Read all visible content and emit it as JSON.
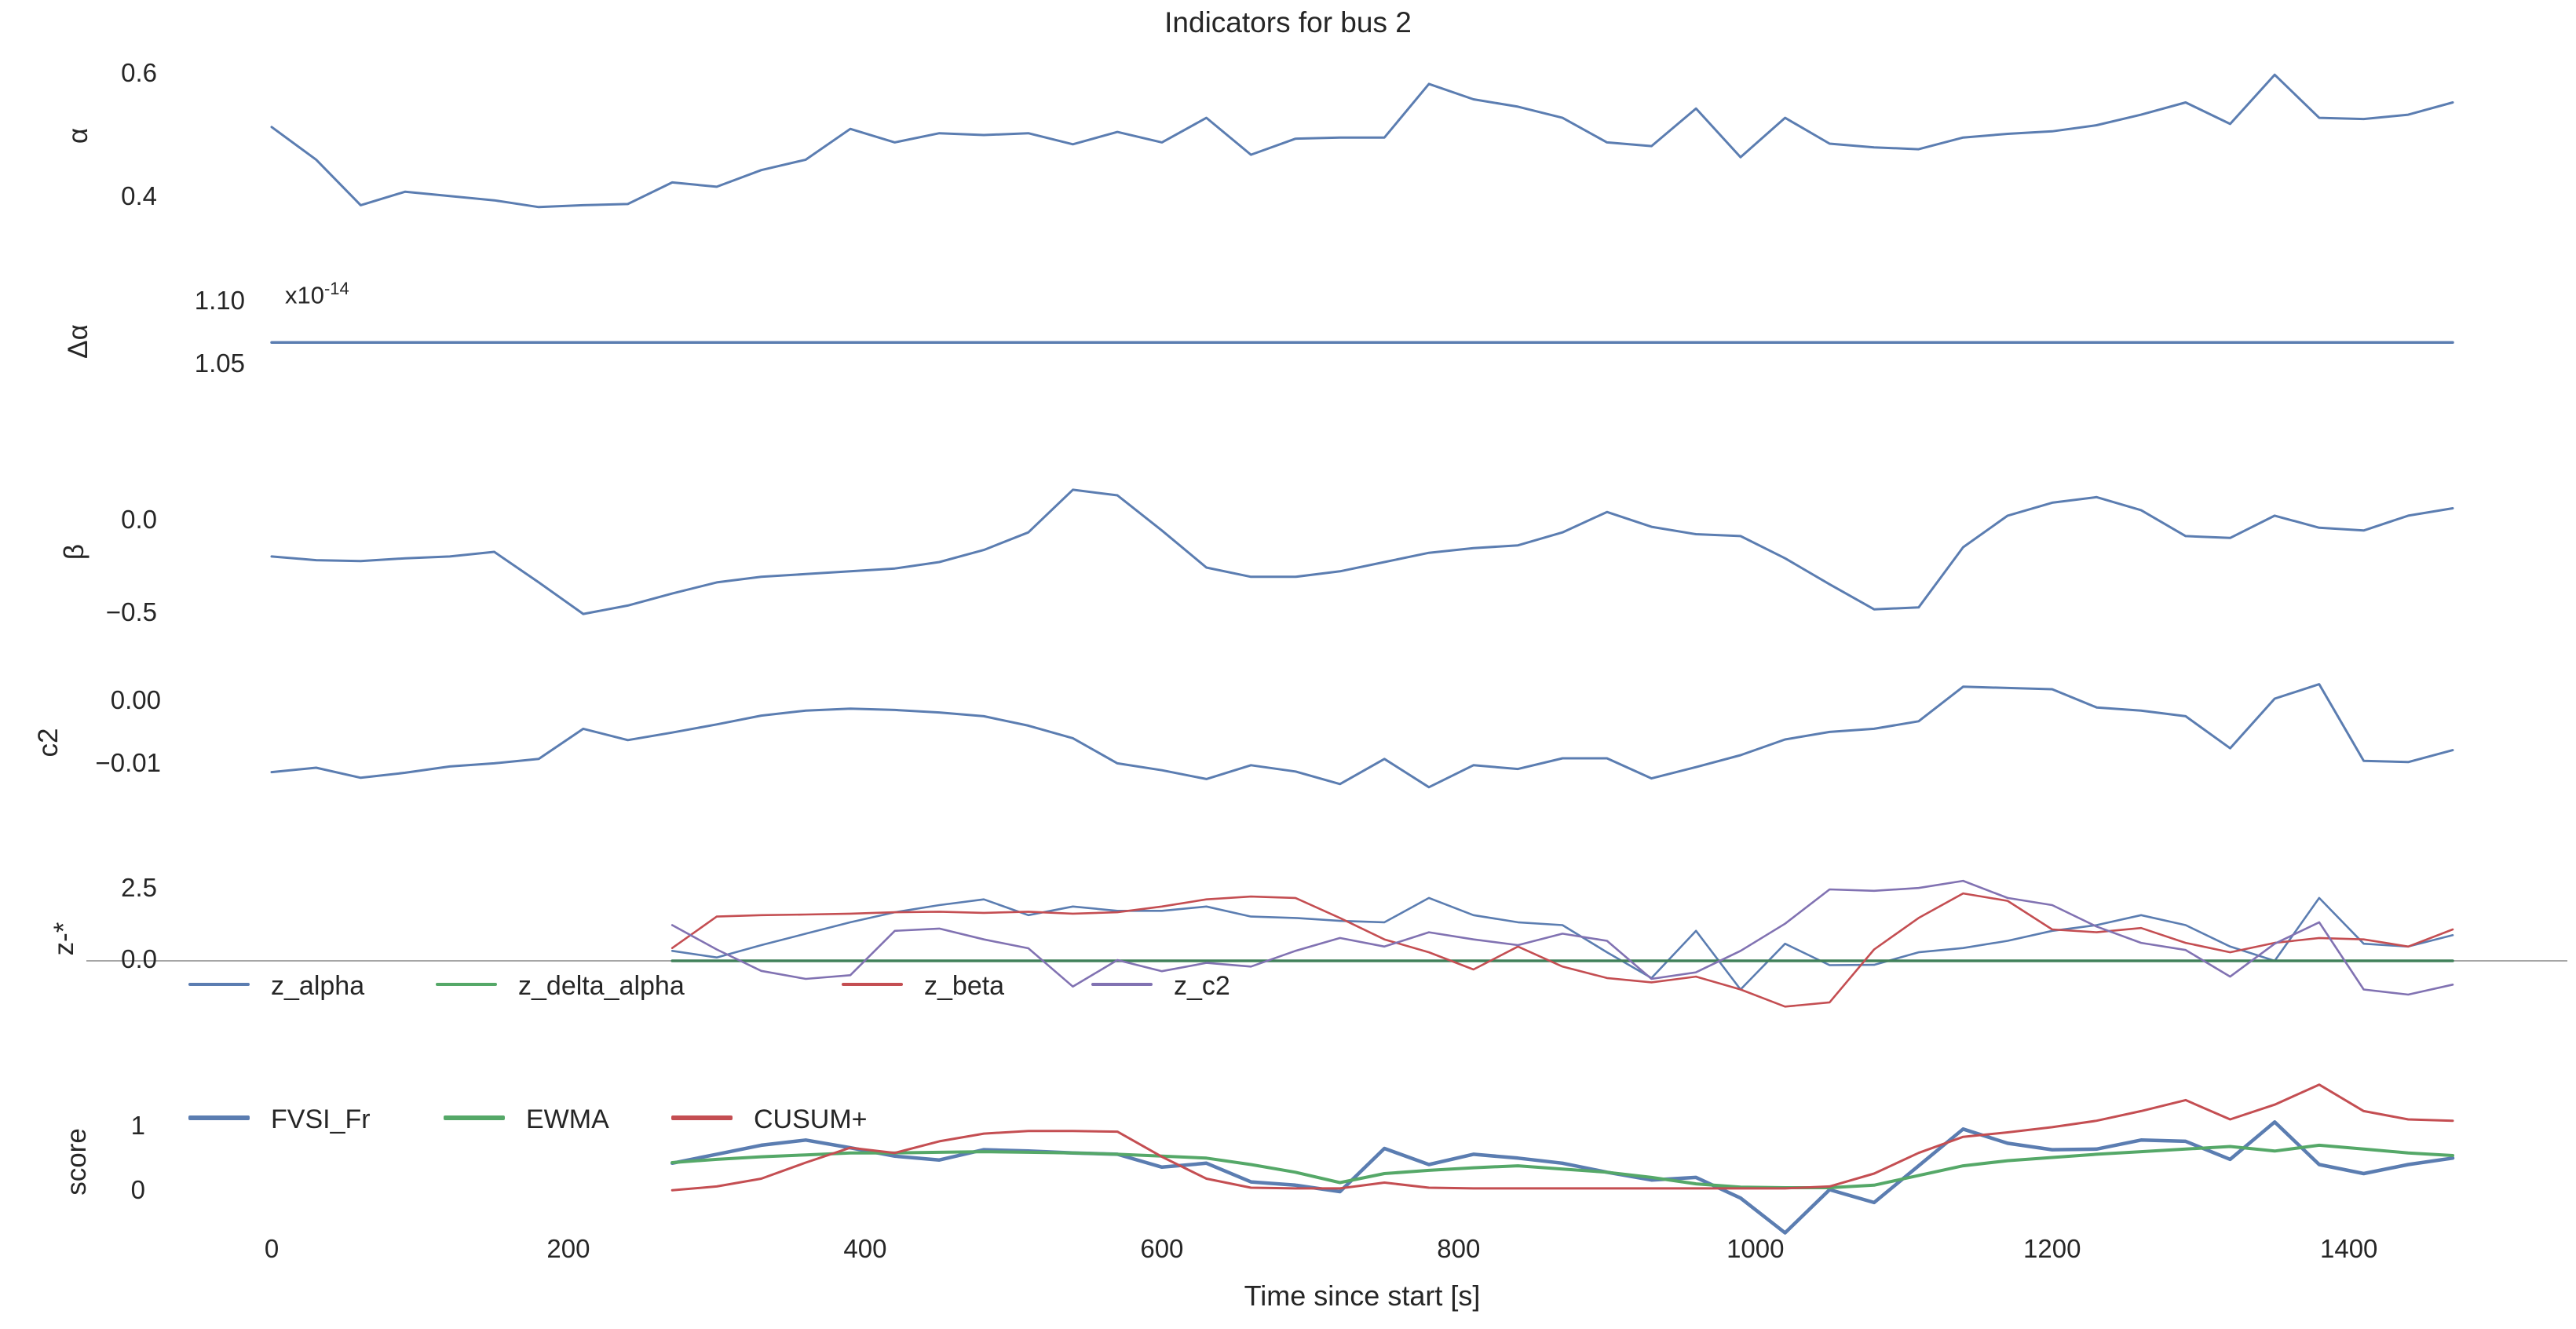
{
  "title": "Indicators for bus 2",
  "xlabel": "Time since start [s]",
  "colors": {
    "blue": "#5b7db1",
    "green": "#55a868",
    "dark_green_zero": "#41815a",
    "red": "#c44e52",
    "purple": "#8172b2",
    "zero_line_gray": "#a6a6a6",
    "text": "#262626",
    "background": "#ffffff"
  },
  "x_axis": {
    "ticks": [
      "0",
      "200",
      "400",
      "600",
      "800",
      "1000",
      "1200",
      "1400"
    ],
    "tick_values": [
      0,
      200,
      400,
      600,
      800,
      1000,
      1200,
      1400
    ],
    "xlim": [
      0,
      1470
    ]
  },
  "chart_data": [
    {
      "type": "line",
      "panel": "alpha",
      "ylabel": "α",
      "yticks": [
        {
          "label": "0.6",
          "value": 0.6
        },
        {
          "label": "0.4",
          "value": 0.4
        }
      ],
      "ylim": [
        0.3605,
        0.641
      ],
      "grid": false,
      "series": [
        {
          "name": "alpha",
          "color": "blue",
          "width": 3,
          "x_start": 0,
          "x_step": 30,
          "values": [
            0.515,
            0.462,
            0.388,
            0.41,
            0.403,
            0.396,
            0.385,
            0.388,
            0.39,
            0.425,
            0.418,
            0.445,
            0.462,
            0.512,
            0.49,
            0.505,
            0.502,
            0.505,
            0.487,
            0.507,
            0.49,
            0.53,
            0.47,
            0.496,
            0.498,
            0.498,
            0.585,
            0.56,
            0.548,
            0.53,
            0.49,
            0.484,
            0.545,
            0.466,
            0.53,
            0.488,
            0.482,
            0.479,
            0.498,
            0.504,
            0.508,
            0.518,
            0.535,
            0.555,
            0.52,
            0.6,
            0.53,
            0.528,
            0.535,
            0.555
          ]
        }
      ]
    },
    {
      "type": "line",
      "panel": "delta_alpha",
      "ylabel": "Δα",
      "offset_text": {
        "base": "x10",
        "exponent": "-14"
      },
      "yticks": [
        {
          "label": "1.10",
          "value": 1.1
        },
        {
          "label": "1.05",
          "value": 1.05
        }
      ],
      "ylim": [
        1.0156,
        1.1219
      ],
      "unit_scale": "1e-14",
      "grid": false,
      "series": [
        {
          "name": "delta_alpha",
          "color": "blue",
          "width": 3.5,
          "x_start": 0,
          "x_step": 30,
          "constant": 1.068,
          "n": 50
        }
      ]
    },
    {
      "type": "line",
      "panel": "beta",
      "ylabel": "β",
      "yticks": [
        {
          "label": "0.0",
          "value": 0.0
        },
        {
          "label": "−0.5",
          "value": -0.5
        }
      ],
      "ylim": [
        -0.576,
        0.25
      ],
      "grid": false,
      "series": [
        {
          "name": "beta",
          "color": "blue",
          "width": 3,
          "x_start": 0,
          "x_step": 30,
          "values": [
            -0.19,
            -0.21,
            -0.215,
            -0.2,
            -0.19,
            -0.165,
            -0.33,
            -0.5,
            -0.455,
            -0.39,
            -0.33,
            -0.3,
            -0.285,
            -0.27,
            -0.255,
            -0.22,
            -0.155,
            -0.06,
            0.17,
            0.14,
            -0.05,
            -0.25,
            -0.3,
            -0.3,
            -0.27,
            -0.22,
            -0.17,
            -0.145,
            -0.13,
            -0.06,
            0.05,
            -0.03,
            -0.07,
            -0.08,
            -0.2,
            -0.34,
            -0.475,
            -0.465,
            -0.14,
            0.03,
            0.1,
            0.13,
            0.06,
            -0.08,
            -0.09,
            0.03,
            -0.035,
            -0.05,
            0.03,
            0.07
          ]
        }
      ]
    },
    {
      "type": "line",
      "panel": "c2",
      "ylabel": "c2",
      "yticks": [
        {
          "label": "0.00",
          "value": 0.0
        },
        {
          "label": "−0.01",
          "value": -0.01
        }
      ],
      "ylim": [
        -0.01825,
        0.00525
      ],
      "grid": false,
      "series": [
        {
          "name": "c2",
          "color": "blue",
          "width": 3,
          "x_start": 0,
          "x_step": 30,
          "values": [
            -0.0112,
            -0.0105,
            -0.0121,
            -0.0113,
            -0.0103,
            -0.0098,
            -0.0091,
            -0.0043,
            -0.0061,
            -0.0049,
            -0.0036,
            -0.0022,
            -0.0014,
            -0.0011,
            -0.0013,
            -0.0017,
            -0.0023,
            -0.0038,
            -0.0058,
            -0.0098,
            -0.0109,
            -0.0123,
            -0.0101,
            -0.0111,
            -0.0131,
            -0.0091,
            -0.0136,
            -0.0101,
            -0.0107,
            -0.009,
            -0.009,
            -0.0122,
            -0.0104,
            -0.0085,
            -0.006,
            -0.0048,
            -0.0043,
            -0.0031,
            0.0024,
            0.0022,
            0.002,
            -0.0009,
            -0.0014,
            -0.0023,
            -0.0074,
            0.0005,
            0.0028,
            -0.0094,
            -0.0096,
            -0.0077
          ]
        }
      ]
    },
    {
      "type": "line",
      "panel": "z_scores",
      "ylabel": "z-*",
      "yticks": [
        {
          "label": "2.5",
          "value": 2.5
        },
        {
          "label": "0.0",
          "value": 0.0
        }
      ],
      "ylim": [
        -2.36,
        3.9
      ],
      "zero_line": true,
      "grid": false,
      "legend": [
        {
          "label": "z_alpha",
          "color": "blue"
        },
        {
          "label": "z_delta_alpha",
          "color": "green"
        },
        {
          "label": "z_beta",
          "color": "red"
        },
        {
          "label": "z_c2",
          "color": "purple"
        }
      ],
      "series": [
        {
          "name": "z_alpha",
          "color": "blue",
          "width": 2.6,
          "x_start": 270,
          "x_step": 30,
          "values": [
            0.35,
            0.12,
            0.55,
            0.95,
            1.35,
            1.7,
            1.95,
            2.15,
            1.6,
            1.9,
            1.75,
            1.75,
            1.9,
            1.55,
            1.5,
            1.4,
            1.35,
            2.2,
            1.6,
            1.35,
            1.25,
            0.3,
            -0.6,
            1.05,
            -1.0,
            0.6,
            -0.15,
            -0.14,
            0.3,
            0.45,
            0.7,
            1.05,
            1.25,
            1.6,
            1.25,
            0.5,
            0.0,
            2.2,
            0.6,
            0.5,
            0.9
          ]
        },
        {
          "name": "z_delta_alpha",
          "color": "green",
          "stroke": "#41815a",
          "width": 3.5,
          "x_start": 270,
          "x_step": 30,
          "constant": 0.0,
          "n": 41
        },
        {
          "name": "z_beta",
          "color": "red",
          "width": 2.6,
          "x_start": 270,
          "x_step": 30,
          "values": [
            0.45,
            1.55,
            1.6,
            1.62,
            1.65,
            1.7,
            1.72,
            1.68,
            1.72,
            1.65,
            1.7,
            1.9,
            2.15,
            2.25,
            2.2,
            1.5,
            0.75,
            0.3,
            -0.3,
            0.5,
            -0.2,
            -0.6,
            -0.75,
            -0.55,
            -1.0,
            -1.6,
            -1.45,
            0.4,
            1.5,
            2.36,
            2.1,
            1.1,
            1.0,
            1.15,
            0.63,
            0.3,
            0.63,
            0.8,
            0.75,
            0.5,
            1.1
          ]
        },
        {
          "name": "z_c2",
          "color": "purple",
          "width": 2.6,
          "x_start": 270,
          "x_step": 30,
          "values": [
            1.25,
            0.4,
            -0.35,
            -0.63,
            -0.5,
            1.05,
            1.13,
            0.75,
            0.44,
            -0.9,
            0.03,
            -0.36,
            -0.07,
            -0.2,
            0.35,
            0.8,
            0.5,
            1.0,
            0.75,
            0.55,
            0.95,
            0.7,
            -0.63,
            -0.4,
            0.35,
            1.3,
            2.5,
            2.45,
            2.55,
            2.8,
            2.2,
            1.95,
            1.2,
            0.63,
            0.38,
            -0.55,
            0.6,
            1.35,
            -1.0,
            -1.18,
            -0.83
          ]
        }
      ]
    },
    {
      "type": "line",
      "panel": "score",
      "ylabel": "score",
      "yticks": [
        {
          "label": "1",
          "value": 1
        },
        {
          "label": "0",
          "value": 0
        }
      ],
      "ylim": [
        -0.695,
        1.62
      ],
      "grid": false,
      "legend": [
        {
          "label": "FVSI_Fr",
          "color": "blue"
        },
        {
          "label": "EWMA",
          "color": "green"
        },
        {
          "label": "CUSUM+",
          "color": "red"
        }
      ],
      "series": [
        {
          "name": "FVSI_Fr",
          "color": "blue",
          "width": 4.5,
          "x_start": 270,
          "x_step": 30,
          "values": [
            0.44,
            0.58,
            0.72,
            0.8,
            0.68,
            0.55,
            0.49,
            0.65,
            0.63,
            0.6,
            0.58,
            0.38,
            0.44,
            0.15,
            0.1,
            0.0,
            0.67,
            0.42,
            0.58,
            0.52,
            0.44,
            0.3,
            0.18,
            0.22,
            -0.1,
            -0.64,
            0.03,
            -0.17,
            0.4,
            0.97,
            0.75,
            0.65,
            0.66,
            0.8,
            0.78,
            0.5,
            1.08,
            0.42,
            0.28,
            0.42,
            0.52
          ]
        },
        {
          "name": "EWMA",
          "color": "green",
          "width": 4,
          "x_start": 270,
          "x_step": 30,
          "values": [
            0.45,
            0.5,
            0.54,
            0.57,
            0.6,
            0.6,
            0.61,
            0.62,
            0.61,
            0.6,
            0.58,
            0.55,
            0.52,
            0.42,
            0.3,
            0.14,
            0.28,
            0.33,
            0.37,
            0.4,
            0.35,
            0.3,
            0.22,
            0.12,
            0.07,
            0.06,
            0.06,
            0.1,
            0.25,
            0.4,
            0.48,
            0.53,
            0.58,
            0.62,
            0.66,
            0.7,
            0.63,
            0.72,
            0.66,
            0.6,
            0.56
          ]
        },
        {
          "name": "CUSUM+",
          "color": "red",
          "width": 3,
          "x_start": 270,
          "x_step": 30,
          "values": [
            0.02,
            0.08,
            0.2,
            0.45,
            0.68,
            0.6,
            0.78,
            0.9,
            0.94,
            0.94,
            0.93,
            0.54,
            0.2,
            0.06,
            0.05,
            0.05,
            0.14,
            0.06,
            0.05,
            0.05,
            0.05,
            0.05,
            0.05,
            0.05,
            0.05,
            0.05,
            0.08,
            0.28,
            0.6,
            0.85,
            0.92,
            1.0,
            1.1,
            1.25,
            1.42,
            1.12,
            1.35,
            1.66,
            1.25,
            1.12,
            1.1
          ]
        }
      ]
    }
  ]
}
